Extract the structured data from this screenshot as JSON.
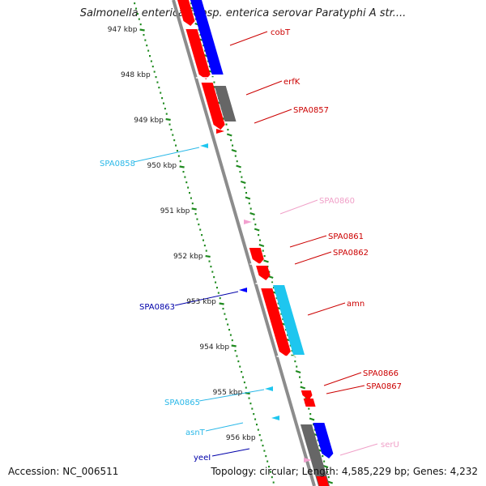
{
  "title": "Salmonella enterica subsp. enterica serovar Paratyphi A str....",
  "footer": {
    "accession": "Accession: NC_006511",
    "topology": "Topology: circular; Length: 4,585,229 bp; Genes: 4,232"
  },
  "colors": {
    "backbone": "#8c8c8c",
    "tick": "#1f8a1f",
    "red": "#ff0000",
    "blue": "#0000ff",
    "cyan": "#1ec6ef",
    "gray": "#666666",
    "pink": "#f2a0cf",
    "label_red": "#cc0000",
    "label_blue": "#0000aa",
    "label_cyan": "#2ab8e8",
    "label_pink": "#f0a0c8",
    "kbp_text": "#222222"
  },
  "kbp_labels": [
    "947 kbp",
    "948 kbp",
    "949 kbp",
    "950 kbp",
    "951 kbp",
    "952 kbp",
    "953 kbp",
    "954 kbp",
    "955 kbp",
    "956 kbp"
  ],
  "gene_labels": [
    {
      "text": "cobT",
      "color": "red",
      "side": "right"
    },
    {
      "text": "erfK",
      "color": "red",
      "side": "right"
    },
    {
      "text": "SPA0857",
      "color": "red",
      "side": "right"
    },
    {
      "text": "SPA0858",
      "color": "cyan",
      "side": "left"
    },
    {
      "text": "SPA0860",
      "color": "pink",
      "side": "right"
    },
    {
      "text": "SPA0861",
      "color": "red",
      "side": "right"
    },
    {
      "text": "SPA0862",
      "color": "red",
      "side": "right"
    },
    {
      "text": "SPA0863",
      "color": "blue",
      "side": "left"
    },
    {
      "text": "amn",
      "color": "red",
      "side": "right"
    },
    {
      "text": "SPA0865",
      "color": "cyan",
      "side": "left"
    },
    {
      "text": "SPA0866",
      "color": "red",
      "side": "right"
    },
    {
      "text": "SPA0867",
      "color": "red",
      "side": "right"
    },
    {
      "text": "asnT",
      "color": "cyan",
      "side": "left"
    },
    {
      "text": "yeeI",
      "color": "blue",
      "side": "left"
    },
    {
      "text": "serU",
      "color": "pink",
      "side": "right"
    }
  ]
}
